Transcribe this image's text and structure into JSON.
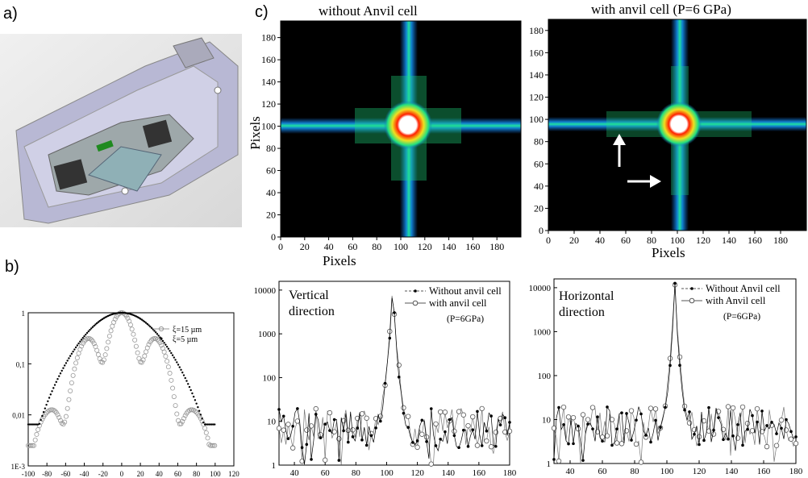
{
  "panels": {
    "a": {
      "label": "a)"
    },
    "b": {
      "label": "b)"
    },
    "c": {
      "label": "c)"
    }
  },
  "heatmap_left": {
    "title": "without Anvil cell",
    "xlabel": "Pixels",
    "ylabel": "Pixels"
  },
  "heatmap_right": {
    "title": "with anvil cell (P=6 GPa)",
    "xlabel": "Pixels"
  },
  "colors": {
    "background": "#000000",
    "low": "#1060c0",
    "mid": "#20e080",
    "high": "#f0e020",
    "peak": "#ff2000",
    "device_body": "#c8c8e0"
  },
  "chart_data": [
    {
      "type": "heatmap",
      "title": "without Anvil cell",
      "xlabel": "Pixels",
      "ylabel": "Pixels",
      "xlim": [
        0,
        200
      ],
      "ylim": [
        0,
        195
      ],
      "xticks": [
        "0",
        "20",
        "40",
        "60",
        "80",
        "100",
        "120",
        "140",
        "160",
        "180"
      ],
      "yticks": [
        "0",
        "20",
        "40",
        "60",
        "80",
        "100",
        "120",
        "140",
        "160",
        "180"
      ],
      "center": [
        103,
        103
      ]
    },
    {
      "type": "heatmap",
      "title": "with anvil cell (P=6 GPa)",
      "xlabel": "Pixels",
      "xlim": [
        0,
        200
      ],
      "ylim": [
        0,
        190
      ],
      "xticks": [
        "0",
        "20",
        "40",
        "60",
        "80",
        "100",
        "120",
        "140",
        "160",
        "180"
      ],
      "yticks": [
        "0",
        "20",
        "40",
        "60",
        "80",
        "100",
        "120",
        "140",
        "160",
        "180"
      ],
      "center": [
        104,
        103
      ],
      "annotations": [
        "up-arrow at (55,60)",
        "right-arrow at (70,45)"
      ]
    },
    {
      "type": "line",
      "xlim": [
        -100,
        120
      ],
      "yscale": "log",
      "xticks": [
        "-100",
        "-80",
        "-60",
        "-40",
        "-20",
        "0",
        "20",
        "40",
        "60",
        "80",
        "100",
        "120"
      ],
      "yticks": [
        "1E-3",
        "0,01",
        "0,1",
        "1"
      ],
      "series": [
        {
          "name": "ξ=15 µm",
          "marker": "open-circle"
        },
        {
          "name": "ξ=5 µm",
          "marker": "filled-dot"
        }
      ]
    },
    {
      "type": "line",
      "annotation": "Vertical direction",
      "annotation_lines": [
        "Vertical",
        "direction"
      ],
      "xlim": [
        30,
        180
      ],
      "yscale": "log",
      "xticks": [
        "40",
        "60",
        "80",
        "100",
        "120",
        "140",
        "160",
        "180"
      ],
      "yticks": [
        "1",
        "10",
        "100",
        "1000",
        "10000"
      ],
      "series": [
        {
          "name": "Without anvil cell",
          "marker": "filled-dot"
        },
        {
          "name": "with anvil cell",
          "marker": "open-circle",
          "note": "(P=6GPa)"
        }
      ]
    },
    {
      "type": "line",
      "annotation": "Horizontal direction",
      "annotation_lines": [
        "Horizontal",
        "direction"
      ],
      "xlim": [
        30,
        180
      ],
      "yscale": "log",
      "xticks": [
        "40",
        "60",
        "80",
        "100",
        "120",
        "140",
        "160",
        "180"
      ],
      "yticks": [
        "1",
        "10",
        "100",
        "1000",
        "10000"
      ],
      "series": [
        {
          "name": "Without Anvil cell",
          "marker": "filled-dot"
        },
        {
          "name": "with Anvil cell",
          "marker": "open-circle",
          "note": "(P=6GPa)"
        }
      ]
    }
  ]
}
